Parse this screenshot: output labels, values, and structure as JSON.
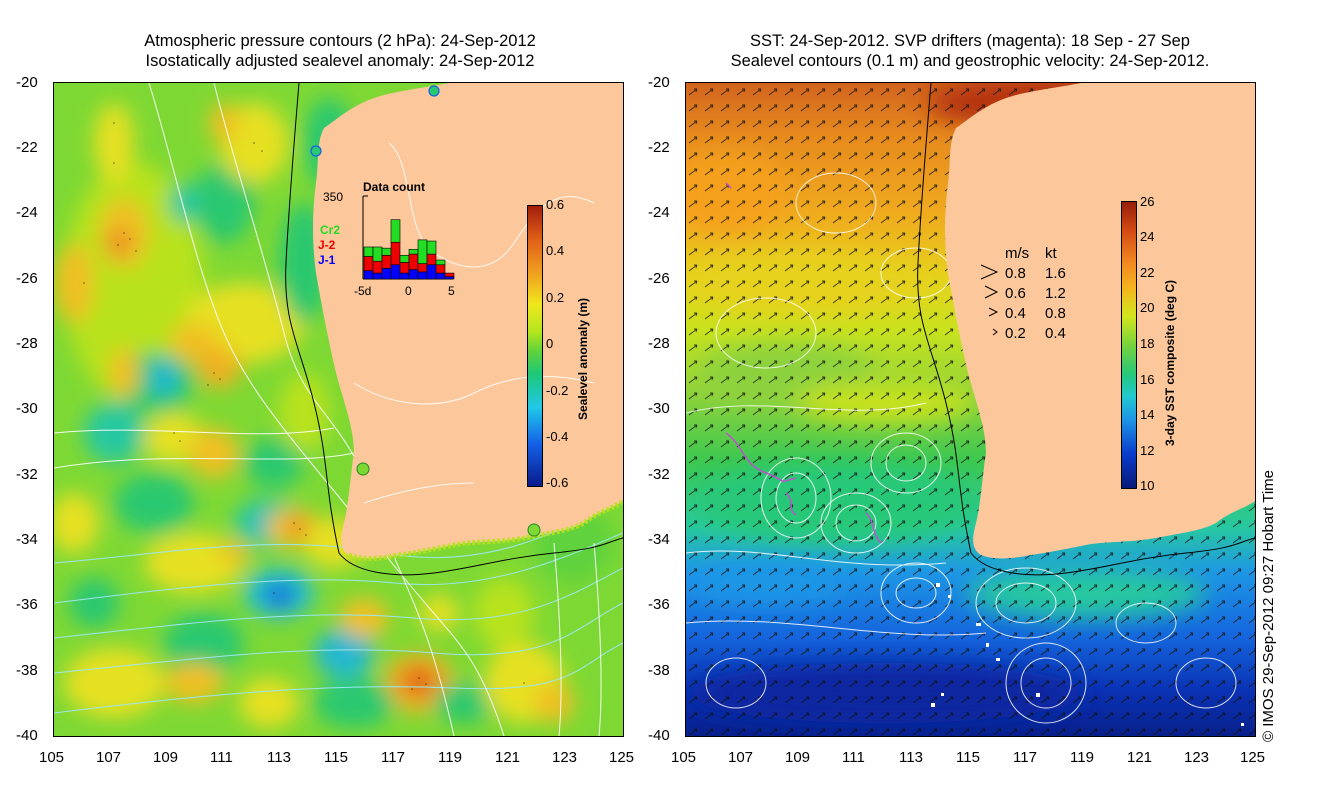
{
  "left_panel": {
    "title_line1": "Atmospheric pressure contours (2 hPa): 24-Sep-2012",
    "title_line2": "Isostatically adjusted sealevel anomaly: 24-Sep-2012",
    "colorbar": {
      "label": "Sealevel anomaly (m)",
      "ticks": [
        "0.6",
        "0.4",
        "0.2",
        "0",
        "-0.2",
        "-0.4",
        "-0.6"
      ]
    },
    "inset": {
      "title": "Data count",
      "ymax_label": "350",
      "x_ticks": [
        "-5d",
        "0",
        "5"
      ],
      "legend": [
        {
          "label": "Cr2",
          "color": "#22dd22"
        },
        {
          "label": "J-2",
          "color": "#ee0000"
        },
        {
          "label": "J-1",
          "color": "#0000ff"
        }
      ],
      "bars": [
        {
          "j1": 35,
          "j2": 60,
          "cr2": 40
        },
        {
          "j1": 25,
          "j2": 50,
          "cr2": 60
        },
        {
          "j1": 45,
          "j2": 55,
          "cr2": 30
        },
        {
          "j1": 60,
          "j2": 95,
          "cr2": 95
        },
        {
          "j1": 25,
          "j2": 45,
          "cr2": 30
        },
        {
          "j1": 40,
          "j2": 65,
          "cr2": 20
        },
        {
          "j1": 30,
          "j2": 35,
          "cr2": 100
        },
        {
          "j1": 60,
          "j2": 45,
          "cr2": 55
        },
        {
          "j1": 25,
          "j2": 35,
          "cr2": 20
        },
        {
          "j1": 10,
          "j2": 15,
          "cr2": 0
        }
      ]
    }
  },
  "right_panel": {
    "title_line1": "SST: 24-Sep-2012. SVP drifters (magenta): 18 Sep - 27 Sep",
    "title_line2": "Sealevel contours (0.1 m) and geostrophic velocity: 24-Sep-2012.",
    "colorbar": {
      "label": "3-day SST composite (deg C)",
      "ticks": [
        "26",
        "24",
        "22",
        "20",
        "18",
        "16",
        "14",
        "12",
        "10"
      ]
    },
    "velocity_legend": {
      "header_ms": "m/s",
      "header_kt": "kt",
      "rows": [
        {
          "ms": "0.8",
          "kt": "1.6"
        },
        {
          "ms": "0.6",
          "kt": "1.2"
        },
        {
          "ms": "0.4",
          "kt": "0.8"
        },
        {
          "ms": "0.2",
          "kt": "0.4"
        }
      ]
    }
  },
  "axes": {
    "lat_labels": [
      "-20",
      "-22",
      "-24",
      "-26",
      "-28",
      "-30",
      "-32",
      "-34",
      "-36",
      "-38",
      "-40"
    ],
    "lon_labels": [
      "105",
      "107",
      "109",
      "111",
      "113",
      "115",
      "117",
      "119",
      "121",
      "123",
      "125"
    ]
  },
  "copyright": "© IMOS 29-Sep-2012 09:27 Hobart Time",
  "colors": {
    "land": "#fcc79b",
    "anomaly_scale": [
      "#0a1a8c",
      "#1460e6",
      "#20c8e8",
      "#1ec878",
      "#5ed23c",
      "#b4e61e",
      "#f0e61e",
      "#f0a020",
      "#e06018",
      "#a01e0a"
    ],
    "sst_scale": [
      "#081a7a",
      "#0a3ccc",
      "#1e96e6",
      "#20c8d0",
      "#28c878",
      "#78d23c",
      "#d2e61e",
      "#f5b41e",
      "#f08220",
      "#d24a14",
      "#961e0a"
    ]
  }
}
